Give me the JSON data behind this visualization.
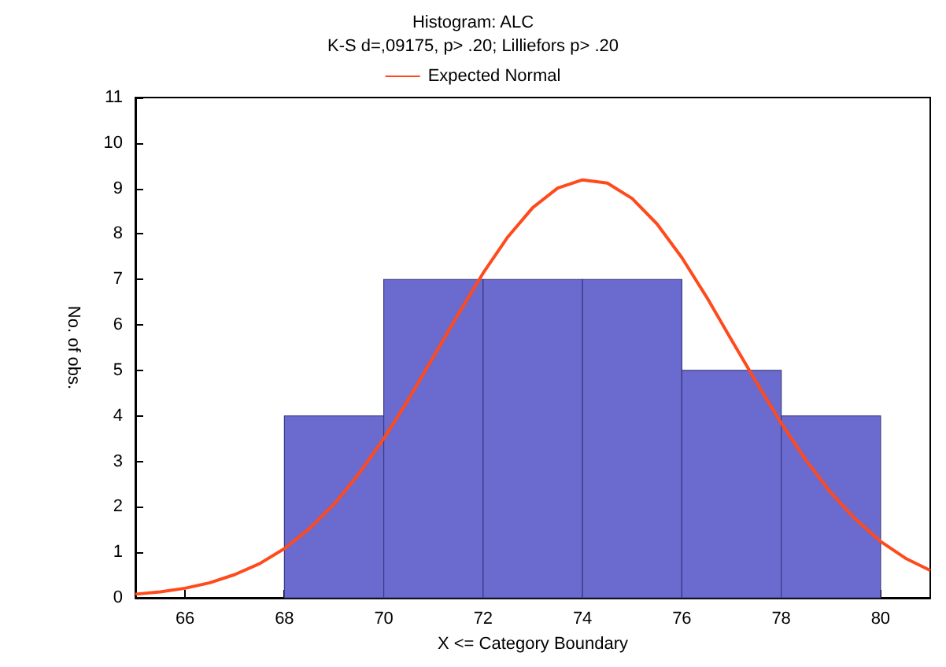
{
  "chart_data": {
    "type": "histogram",
    "title": "Histogram: ALC",
    "subtitle": "K-S d=,09175, p> .20; Lilliefors p> .20",
    "xlabel": "X <= Category Boundary",
    "ylabel": "No. of obs.",
    "xlim": [
      65,
      81
    ],
    "xticks": [
      66,
      68,
      70,
      72,
      74,
      76,
      78,
      80
    ],
    "ylim": [
      0,
      11
    ],
    "yticks": [
      0,
      1,
      2,
      3,
      4,
      5,
      6,
      7,
      8,
      9,
      10,
      11
    ],
    "grid": false,
    "legend": "top",
    "marker": "none",
    "line_style": "solid",
    "series": [
      {
        "color": "#6b6bcf",
        "bins": [
          68,
          70,
          72,
          74,
          76,
          78,
          80
        ],
        "values": [
          4,
          7,
          7,
          7,
          5,
          4
        ]
      },
      {
        "type": "line",
        "name": "Expected Normal",
        "color": "#ff4a1c",
        "x": [
          65,
          65.5,
          66,
          66.5,
          67,
          67.5,
          68,
          68.5,
          69,
          69.5,
          70,
          70.5,
          71,
          71.5,
          72,
          72.5,
          73,
          73.5,
          74,
          74.5,
          75,
          75.5,
          76,
          76.5,
          77,
          77.5,
          78,
          78.5,
          79,
          79.5,
          80,
          80.5,
          81
        ],
        "values": [
          0.08,
          0.13,
          0.21,
          0.33,
          0.51,
          0.75,
          1.08,
          1.52,
          2.06,
          2.73,
          3.5,
          4.37,
          5.3,
          6.24,
          7.14,
          7.94,
          8.58,
          9.01,
          9.19,
          9.12,
          8.78,
          8.22,
          7.48,
          6.61,
          5.67,
          4.74,
          3.84,
          3.02,
          2.31,
          1.72,
          1.24,
          0.87,
          0.6
        ]
      }
    ]
  }
}
